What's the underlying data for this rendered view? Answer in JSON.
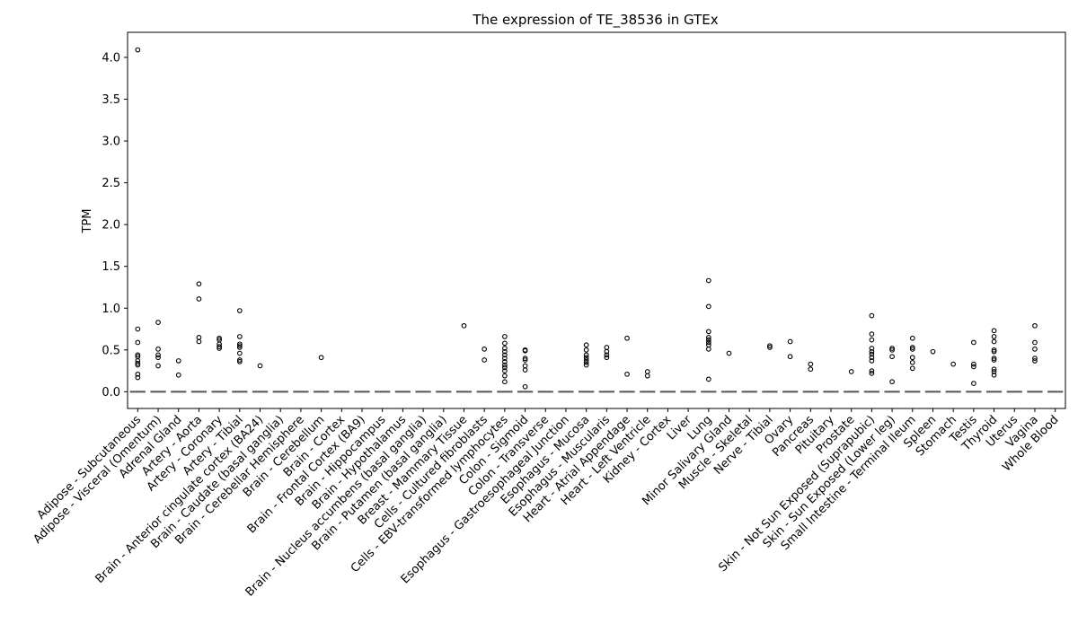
{
  "chart_data": {
    "type": "box",
    "title": "The expression of TE_38536 in GTEx",
    "xlabel": "",
    "ylabel": "TPM",
    "ylim": [
      -0.2,
      4.3
    ],
    "yticks": [
      "0.0",
      "0.5",
      "1.0",
      "1.5",
      "2.0",
      "2.5",
      "3.0",
      "3.5",
      "4.0"
    ],
    "grid": false,
    "categories": [
      "Adipose - Subcutaneous",
      "Adipose - Visceral (Omentum)",
      "Adrenal Gland",
      "Artery - Aorta",
      "Artery - Coronary",
      "Artery - Tibial",
      "Brain - Anterior cingulate cortex (BA24)",
      "Brain - Caudate (basal ganglia)",
      "Brain - Cerebellar Hemisphere",
      "Brain - Cerebellum",
      "Brain - Cortex",
      "Brain - Frontal Cortex (BA9)",
      "Brain - Hippocampus",
      "Brain - Hypothalamus",
      "Brain - Nucleus accumbens (basal ganglia)",
      "Brain - Putamen (basal ganglia)",
      "Breast - Mammary Tissue",
      "Cells - Cultured fibroblasts",
      "Cells - EBV-transformed lymphocytes",
      "Colon - Sigmoid",
      "Colon - Transverse",
      "Esophagus - Gastroesophageal Junction",
      "Esophagus - Mucosa",
      "Esophagus - Muscularis",
      "Heart - Atrial Appendage",
      "Heart - Left Ventricle",
      "Kidney - Cortex",
      "Liver",
      "Lung",
      "Minor Salivary Gland",
      "Muscle - Skeletal",
      "Nerve - Tibial",
      "Ovary",
      "Pancreas",
      "Pituitary",
      "Prostate",
      "Skin - Not Sun Exposed (Suprapubic)",
      "Skin - Sun Exposed (Lower leg)",
      "Small Intestine - Terminal Ileum",
      "Spleen",
      "Stomach",
      "Testis",
      "Thyroid",
      "Uterus",
      "Vagina",
      "Whole Blood"
    ],
    "median": 0.0,
    "outliers": [
      [
        4.09,
        0.75,
        0.59,
        0.44,
        0.42,
        0.37,
        0.34,
        0.32,
        0.21,
        0.17
      ],
      [
        0.83,
        0.51,
        0.44,
        0.41,
        0.31
      ],
      [
        0.37,
        0.2
      ],
      [
        1.29,
        1.11,
        0.65,
        0.6
      ],
      [
        0.64,
        0.62,
        0.57,
        0.54,
        0.52
      ],
      [
        0.97,
        0.66,
        0.57,
        0.55,
        0.53,
        0.46,
        0.38,
        0.36
      ],
      [
        0.31
      ],
      [],
      [],
      [
        0.41
      ],
      [],
      [],
      [],
      [],
      [],
      [],
      [
        0.79
      ],
      [
        0.51,
        0.38
      ],
      [
        0.66,
        0.58,
        0.52,
        0.48,
        0.44,
        0.4,
        0.36,
        0.32,
        0.29,
        0.25,
        0.19,
        0.12
      ],
      [
        0.5,
        0.49,
        0.4,
        0.38,
        0.31,
        0.26,
        0.06
      ],
      [],
      [],
      [
        0.56,
        0.5,
        0.44,
        0.41,
        0.38,
        0.35,
        0.32
      ],
      [
        0.53,
        0.48,
        0.44,
        0.41
      ],
      [
        0.64,
        0.21
      ],
      [
        0.24,
        0.19
      ],
      [],
      [],
      [
        1.33,
        1.02,
        0.72,
        0.65,
        0.62,
        0.59,
        0.56,
        0.51,
        0.15
      ],
      [
        0.46
      ],
      [],
      [
        0.55,
        0.53
      ],
      [
        0.6,
        0.42
      ],
      [
        0.33,
        0.27
      ],
      [],
      [
        0.24
      ],
      [
        0.91,
        0.69,
        0.62,
        0.52,
        0.48,
        0.45,
        0.41,
        0.37,
        0.25,
        0.22
      ],
      [
        0.52,
        0.5,
        0.42,
        0.12
      ],
      [
        0.64,
        0.53,
        0.51,
        0.41,
        0.35,
        0.28
      ],
      [
        0.48
      ],
      [
        0.33
      ],
      [
        0.59,
        0.33,
        0.3,
        0.1
      ],
      [
        0.73,
        0.66,
        0.6,
        0.5,
        0.48,
        0.4,
        0.38,
        0.27,
        0.24,
        0.2
      ],
      [],
      [
        0.79,
        0.59,
        0.51,
        0.4,
        0.37
      ],
      []
    ],
    "colors": {
      "median": "#555555",
      "outlier_edge": "#000000",
      "axis": "#000000",
      "background": "#ffffff"
    }
  }
}
